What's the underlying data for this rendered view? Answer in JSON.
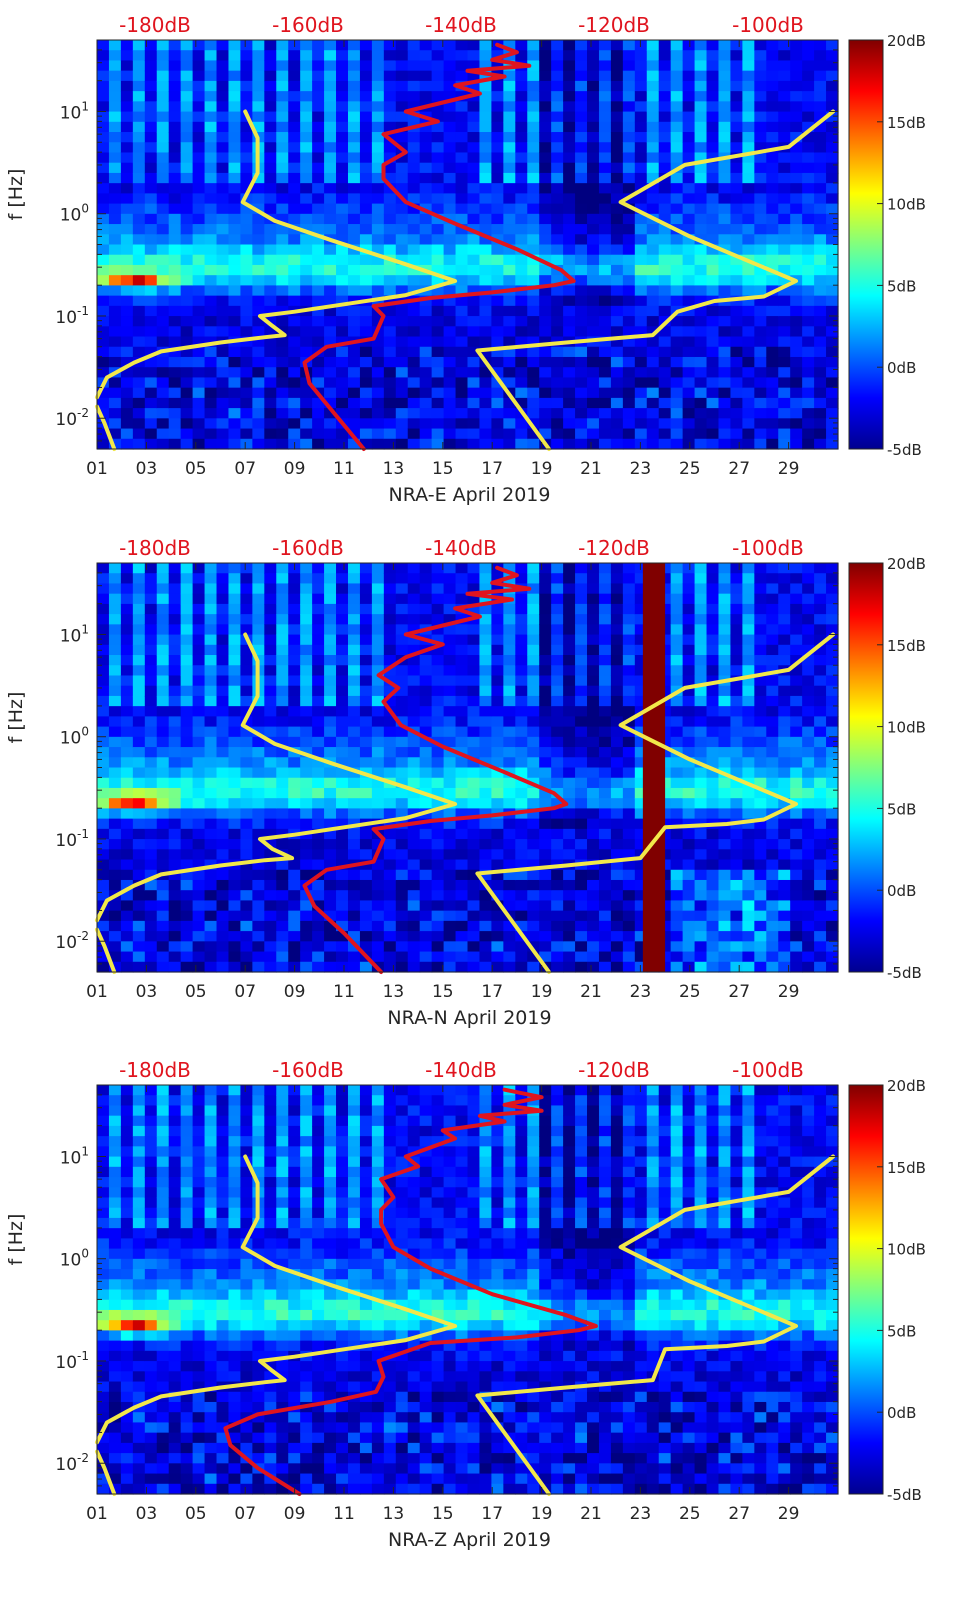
{
  "chart_data": [
    {
      "type": "heatmap",
      "xlabel": "NRA-E April 2019",
      "ylabel": "f [Hz]",
      "x_ticks": [
        "01",
        "03",
        "05",
        "07",
        "09",
        "11",
        "13",
        "15",
        "17",
        "19",
        "21",
        "23",
        "25",
        "27",
        "29"
      ],
      "x_range_days": [
        1,
        31
      ],
      "y_scale": "log",
      "y_range_hz": [
        0.005,
        50
      ],
      "y_ticks": [
        {
          "exp": "-2",
          "value": 0.01
        },
        {
          "exp": "-1",
          "value": 0.1
        },
        {
          "exp": "0",
          "value": 1
        },
        {
          "exp": "1",
          "value": 10
        }
      ],
      "top_axis_labels": [
        "-180dB",
        "-160dB",
        "-140dB",
        "-120dB",
        "-100dB"
      ],
      "colorbar": {
        "labels": [
          "20dB",
          "15dB",
          "10dB",
          "5dB",
          "0dB",
          "-5dB"
        ],
        "range_db": [
          -5,
          20
        ],
        "colormap": "jet"
      },
      "gap_band_days": null,
      "series": [
        {
          "color": "#f2e84a",
          "points": [
            [
              1.0,
              0.016
            ],
            [
              1.4,
              0.025
            ],
            [
              2.5,
              0.035
            ],
            [
              3.6,
              0.045
            ],
            [
              6.0,
              0.055
            ],
            [
              7.8,
              0.062
            ],
            [
              8.6,
              0.065
            ],
            [
              8.1,
              0.08
            ],
            [
              7.6,
              0.1
            ],
            [
              9.0,
              0.11
            ],
            [
              11.0,
              0.13
            ],
            [
              13.5,
              0.16
            ],
            [
              15.5,
              0.22
            ],
            [
              13.5,
              0.32
            ],
            [
              10.5,
              0.55
            ],
            [
              8.2,
              0.85
            ],
            [
              6.9,
              1.3
            ],
            [
              7.5,
              2.5
            ],
            [
              7.5,
              5.5
            ],
            [
              7.0,
              10
            ]
          ]
        },
        {
          "color": "#f2e84a",
          "points": [
            [
              1.0,
              0.013
            ],
            [
              1.3,
              0.009
            ],
            [
              1.7,
              0.005
            ]
          ]
        },
        {
          "color": "#f2e84a",
          "points": [
            [
              19.3,
              0.005
            ],
            [
              16.4,
              0.046
            ],
            [
              20.0,
              0.055
            ],
            [
              23.5,
              0.065
            ],
            [
              24.5,
              0.11
            ],
            [
              26.0,
              0.14
            ],
            [
              28.0,
              0.155
            ],
            [
              29.3,
              0.22
            ],
            [
              25.0,
              0.6
            ],
            [
              22.2,
              1.3
            ],
            [
              24.8,
              3.0
            ],
            [
              29.0,
              4.5
            ],
            [
              30.8,
              10
            ]
          ]
        },
        {
          "color": "#e0141e",
          "points": [
            [
              11.8,
              0.005
            ],
            [
              10.5,
              0.012
            ],
            [
              9.6,
              0.022
            ],
            [
              9.4,
              0.035
            ],
            [
              10.3,
              0.05
            ],
            [
              12.2,
              0.06
            ],
            [
              12.6,
              0.1
            ],
            [
              12.2,
              0.125
            ],
            [
              14.5,
              0.15
            ],
            [
              17.0,
              0.17
            ],
            [
              19.5,
              0.2
            ],
            [
              20.3,
              0.22
            ],
            [
              19.8,
              0.28
            ],
            [
              18.0,
              0.45
            ],
            [
              15.5,
              0.8
            ],
            [
              13.5,
              1.3
            ],
            [
              12.6,
              2.2
            ],
            [
              12.6,
              3.0
            ],
            [
              13.5,
              4.0
            ],
            [
              12.6,
              6.0
            ],
            [
              14.8,
              8.0
            ],
            [
              13.5,
              10.0
            ],
            [
              16.5,
              15.0
            ],
            [
              15.5,
              18.0
            ],
            [
              17.5,
              22.0
            ],
            [
              16.0,
              25.0
            ],
            [
              18.5,
              28.0
            ],
            [
              17.0,
              32.0
            ],
            [
              18.0,
              38.0
            ],
            [
              17.2,
              45.0
            ]
          ]
        }
      ]
    },
    {
      "type": "heatmap",
      "xlabel": "NRA-N April 2019",
      "ylabel": "f [Hz]",
      "x_ticks": [
        "01",
        "03",
        "05",
        "07",
        "09",
        "11",
        "13",
        "15",
        "17",
        "19",
        "21",
        "23",
        "25",
        "27",
        "29"
      ],
      "x_range_days": [
        1,
        31
      ],
      "y_scale": "log",
      "y_range_hz": [
        0.005,
        50
      ],
      "y_ticks": [
        {
          "exp": "-2",
          "value": 0.01
        },
        {
          "exp": "-1",
          "value": 0.1
        },
        {
          "exp": "0",
          "value": 1
        },
        {
          "exp": "1",
          "value": 10
        }
      ],
      "top_axis_labels": [
        "-180dB",
        "-160dB",
        "-140dB",
        "-120dB",
        "-100dB"
      ],
      "colorbar": {
        "labels": [
          "20dB",
          "15dB",
          "10dB",
          "5dB",
          "0dB",
          "-5dB"
        ],
        "range_db": [
          -5,
          20
        ],
        "colormap": "jet"
      },
      "gap_band_days": [
        23.1,
        24.0
      ],
      "series": [
        {
          "color": "#f2e84a",
          "points": [
            [
              1.0,
              0.016
            ],
            [
              1.4,
              0.025
            ],
            [
              2.5,
              0.035
            ],
            [
              3.6,
              0.045
            ],
            [
              6.0,
              0.055
            ],
            [
              7.8,
              0.062
            ],
            [
              8.9,
              0.065
            ],
            [
              8.1,
              0.08
            ],
            [
              7.6,
              0.1
            ],
            [
              9.0,
              0.11
            ],
            [
              11.0,
              0.13
            ],
            [
              13.5,
              0.16
            ],
            [
              15.5,
              0.22
            ],
            [
              13.5,
              0.32
            ],
            [
              10.5,
              0.55
            ],
            [
              8.2,
              0.85
            ],
            [
              6.9,
              1.3
            ],
            [
              7.5,
              2.5
            ],
            [
              7.5,
              5.5
            ],
            [
              7.0,
              10
            ]
          ]
        },
        {
          "color": "#f2e84a",
          "points": [
            [
              1.0,
              0.013
            ],
            [
              1.3,
              0.009
            ],
            [
              1.7,
              0.005
            ]
          ]
        },
        {
          "color": "#f2e84a",
          "points": [
            [
              19.3,
              0.005
            ],
            [
              16.4,
              0.046
            ],
            [
              20.0,
              0.055
            ],
            [
              23.0,
              0.065
            ],
            [
              24.0,
              0.13
            ],
            [
              26.5,
              0.14
            ],
            [
              28.0,
              0.155
            ],
            [
              29.3,
              0.22
            ],
            [
              25.0,
              0.6
            ],
            [
              22.2,
              1.3
            ],
            [
              24.8,
              3.0
            ],
            [
              29.0,
              4.5
            ],
            [
              30.8,
              10
            ]
          ]
        },
        {
          "color": "#e0141e",
          "points": [
            [
              12.5,
              0.005
            ],
            [
              11.0,
              0.012
            ],
            [
              9.8,
              0.022
            ],
            [
              9.4,
              0.035
            ],
            [
              10.3,
              0.05
            ],
            [
              12.2,
              0.06
            ],
            [
              12.6,
              0.1
            ],
            [
              12.2,
              0.125
            ],
            [
              14.5,
              0.15
            ],
            [
              17.0,
              0.17
            ],
            [
              19.5,
              0.2
            ],
            [
              20.0,
              0.22
            ],
            [
              19.5,
              0.28
            ],
            [
              17.5,
              0.45
            ],
            [
              15.0,
              0.8
            ],
            [
              13.3,
              1.3
            ],
            [
              12.6,
              2.2
            ],
            [
              13.2,
              3.0
            ],
            [
              12.4,
              4.0
            ],
            [
              13.5,
              6.0
            ],
            [
              15.0,
              8.0
            ],
            [
              13.5,
              10.0
            ],
            [
              16.5,
              15.0
            ],
            [
              15.5,
              18.0
            ],
            [
              17.8,
              22.0
            ],
            [
              16.0,
              25.0
            ],
            [
              18.5,
              28.0
            ],
            [
              17.0,
              32.0
            ],
            [
              18.0,
              38.0
            ],
            [
              17.2,
              45.0
            ]
          ]
        }
      ]
    },
    {
      "type": "heatmap",
      "xlabel": "NRA-Z April 2019",
      "ylabel": "f [Hz]",
      "x_ticks": [
        "01",
        "03",
        "05",
        "07",
        "09",
        "11",
        "13",
        "15",
        "17",
        "19",
        "21",
        "23",
        "25",
        "27",
        "29"
      ],
      "x_range_days": [
        1,
        31
      ],
      "y_scale": "log",
      "y_range_hz": [
        0.005,
        50
      ],
      "y_ticks": [
        {
          "exp": "-2",
          "value": 0.01
        },
        {
          "exp": "-1",
          "value": 0.1
        },
        {
          "exp": "0",
          "value": 1
        },
        {
          "exp": "1",
          "value": 10
        }
      ],
      "top_axis_labels": [
        "-180dB",
        "-160dB",
        "-140dB",
        "-120dB",
        "-100dB"
      ],
      "colorbar": {
        "labels": [
          "20dB",
          "15dB",
          "10dB",
          "5dB",
          "0dB",
          "-5dB"
        ],
        "range_db": [
          -5,
          20
        ],
        "colormap": "jet"
      },
      "gap_band_days": null,
      "series": [
        {
          "color": "#f2e84a",
          "points": [
            [
              1.0,
              0.016
            ],
            [
              1.4,
              0.025
            ],
            [
              2.5,
              0.035
            ],
            [
              3.6,
              0.045
            ],
            [
              6.0,
              0.055
            ],
            [
              7.8,
              0.062
            ],
            [
              8.6,
              0.065
            ],
            [
              8.1,
              0.08
            ],
            [
              7.6,
              0.1
            ],
            [
              9.0,
              0.11
            ],
            [
              11.0,
              0.13
            ],
            [
              13.5,
              0.16
            ],
            [
              15.5,
              0.22
            ],
            [
              13.5,
              0.32
            ],
            [
              10.5,
              0.55
            ],
            [
              8.2,
              0.85
            ],
            [
              6.9,
              1.3
            ],
            [
              7.5,
              2.5
            ],
            [
              7.5,
              5.5
            ],
            [
              7.0,
              10
            ]
          ]
        },
        {
          "color": "#f2e84a",
          "points": [
            [
              1.0,
              0.013
            ],
            [
              1.3,
              0.009
            ],
            [
              1.7,
              0.005
            ]
          ]
        },
        {
          "color": "#f2e84a",
          "points": [
            [
              19.3,
              0.005
            ],
            [
              16.4,
              0.046
            ],
            [
              20.0,
              0.055
            ],
            [
              23.5,
              0.065
            ],
            [
              24.0,
              0.13
            ],
            [
              26.5,
              0.14
            ],
            [
              28.0,
              0.155
            ],
            [
              29.3,
              0.22
            ],
            [
              25.0,
              0.6
            ],
            [
              22.2,
              1.3
            ],
            [
              24.8,
              3.0
            ],
            [
              29.0,
              4.5
            ],
            [
              30.8,
              10
            ]
          ]
        },
        {
          "color": "#e0141e",
          "points": [
            [
              9.2,
              0.005
            ],
            [
              7.5,
              0.009
            ],
            [
              6.4,
              0.015
            ],
            [
              6.2,
              0.022
            ],
            [
              7.5,
              0.03
            ],
            [
              10.5,
              0.04
            ],
            [
              12.3,
              0.05
            ],
            [
              12.6,
              0.07
            ],
            [
              12.4,
              0.1
            ],
            [
              14.5,
              0.15
            ],
            [
              18.0,
              0.17
            ],
            [
              20.5,
              0.2
            ],
            [
              21.2,
              0.22
            ],
            [
              20.0,
              0.28
            ],
            [
              17.0,
              0.45
            ],
            [
              14.5,
              0.8
            ],
            [
              13.0,
              1.3
            ],
            [
              12.5,
              2.2
            ],
            [
              12.5,
              3.0
            ],
            [
              13.0,
              4.0
            ],
            [
              12.5,
              6.0
            ],
            [
              14.0,
              8.0
            ],
            [
              13.5,
              10.0
            ],
            [
              15.5,
              15.0
            ],
            [
              15.0,
              18.0
            ],
            [
              17.5,
              22.0
            ],
            [
              16.5,
              25.0
            ],
            [
              19.0,
              28.0
            ],
            [
              17.5,
              32.0
            ],
            [
              19.0,
              38.0
            ],
            [
              17.5,
              45.0
            ]
          ]
        }
      ]
    }
  ]
}
